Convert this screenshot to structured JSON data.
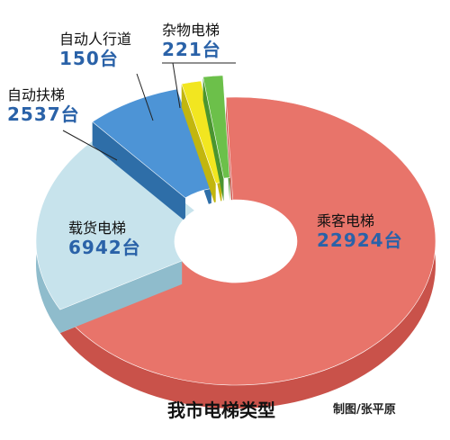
{
  "chart_data": {
    "type": "pie",
    "style": "3d-donut",
    "title": "我市电梯类型",
    "credit": "制图/张平原",
    "unit": "台",
    "slices": [
      {
        "label": "乘客电梯",
        "value": 22924,
        "value_text": "22924台",
        "color": "#e8746a",
        "side_color": "#c9524a"
      },
      {
        "label": "载货电梯",
        "value": 6942,
        "value_text": "6942台",
        "color": "#c7e3ec",
        "side_color": "#8fbccc"
      },
      {
        "label": "自动扶梯",
        "value": 2537,
        "value_text": "2537台",
        "color": "#4d94d6",
        "side_color": "#2e6ea8"
      },
      {
        "label": "自动人行道",
        "value": 150,
        "value_text": "150台",
        "color": "#f2e620",
        "side_color": "#c2b60e"
      },
      {
        "label": "杂物电梯",
        "value": 221,
        "value_text": "221台",
        "color": "#6cc04a",
        "side_color": "#4a9530"
      }
    ]
  }
}
